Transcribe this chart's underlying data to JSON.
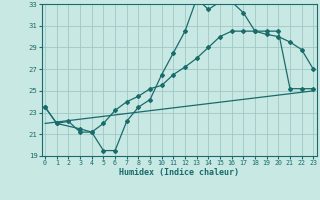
{
  "xlabel": "Humidex (Indice chaleur)",
  "bg_color": "#c8e8e4",
  "line_color": "#1a6b6b",
  "grid_color": "#a0c8c4",
  "xlim": [
    0,
    23
  ],
  "ylim": [
    19,
    33
  ],
  "yticks": [
    19,
    21,
    23,
    25,
    27,
    29,
    31,
    33
  ],
  "xticks": [
    0,
    1,
    2,
    3,
    4,
    5,
    6,
    7,
    8,
    9,
    10,
    11,
    12,
    13,
    14,
    15,
    16,
    17,
    18,
    19,
    20,
    21,
    22,
    23
  ],
  "line1_x": [
    0,
    1,
    2,
    3,
    4,
    5,
    6,
    7,
    8,
    9,
    10,
    11,
    12,
    13,
    14,
    15,
    16,
    17,
    18,
    19,
    20,
    21,
    22,
    23
  ],
  "line1_y": [
    23.5,
    22.0,
    22.2,
    21.2,
    21.2,
    19.5,
    19.5,
    22.2,
    23.5,
    24.2,
    26.5,
    28.5,
    30.5,
    33.5,
    32.5,
    33.2,
    33.2,
    32.2,
    30.5,
    30.2,
    30.0,
    29.5,
    28.8,
    27.0
  ],
  "line2_x": [
    0,
    1,
    3,
    4,
    5,
    6,
    7,
    8,
    9,
    10,
    11,
    12,
    13,
    14,
    15,
    16,
    17,
    18,
    19,
    20,
    21,
    22,
    23
  ],
  "line2_y": [
    23.5,
    22.0,
    21.5,
    21.2,
    22.0,
    23.2,
    24.0,
    24.5,
    25.2,
    25.5,
    26.5,
    27.2,
    28.0,
    29.0,
    30.0,
    30.5,
    30.5,
    30.5,
    30.5,
    30.5,
    25.2,
    25.2,
    25.2
  ],
  "line3_x": [
    0,
    23
  ],
  "line3_y": [
    22.0,
    25.0
  ]
}
